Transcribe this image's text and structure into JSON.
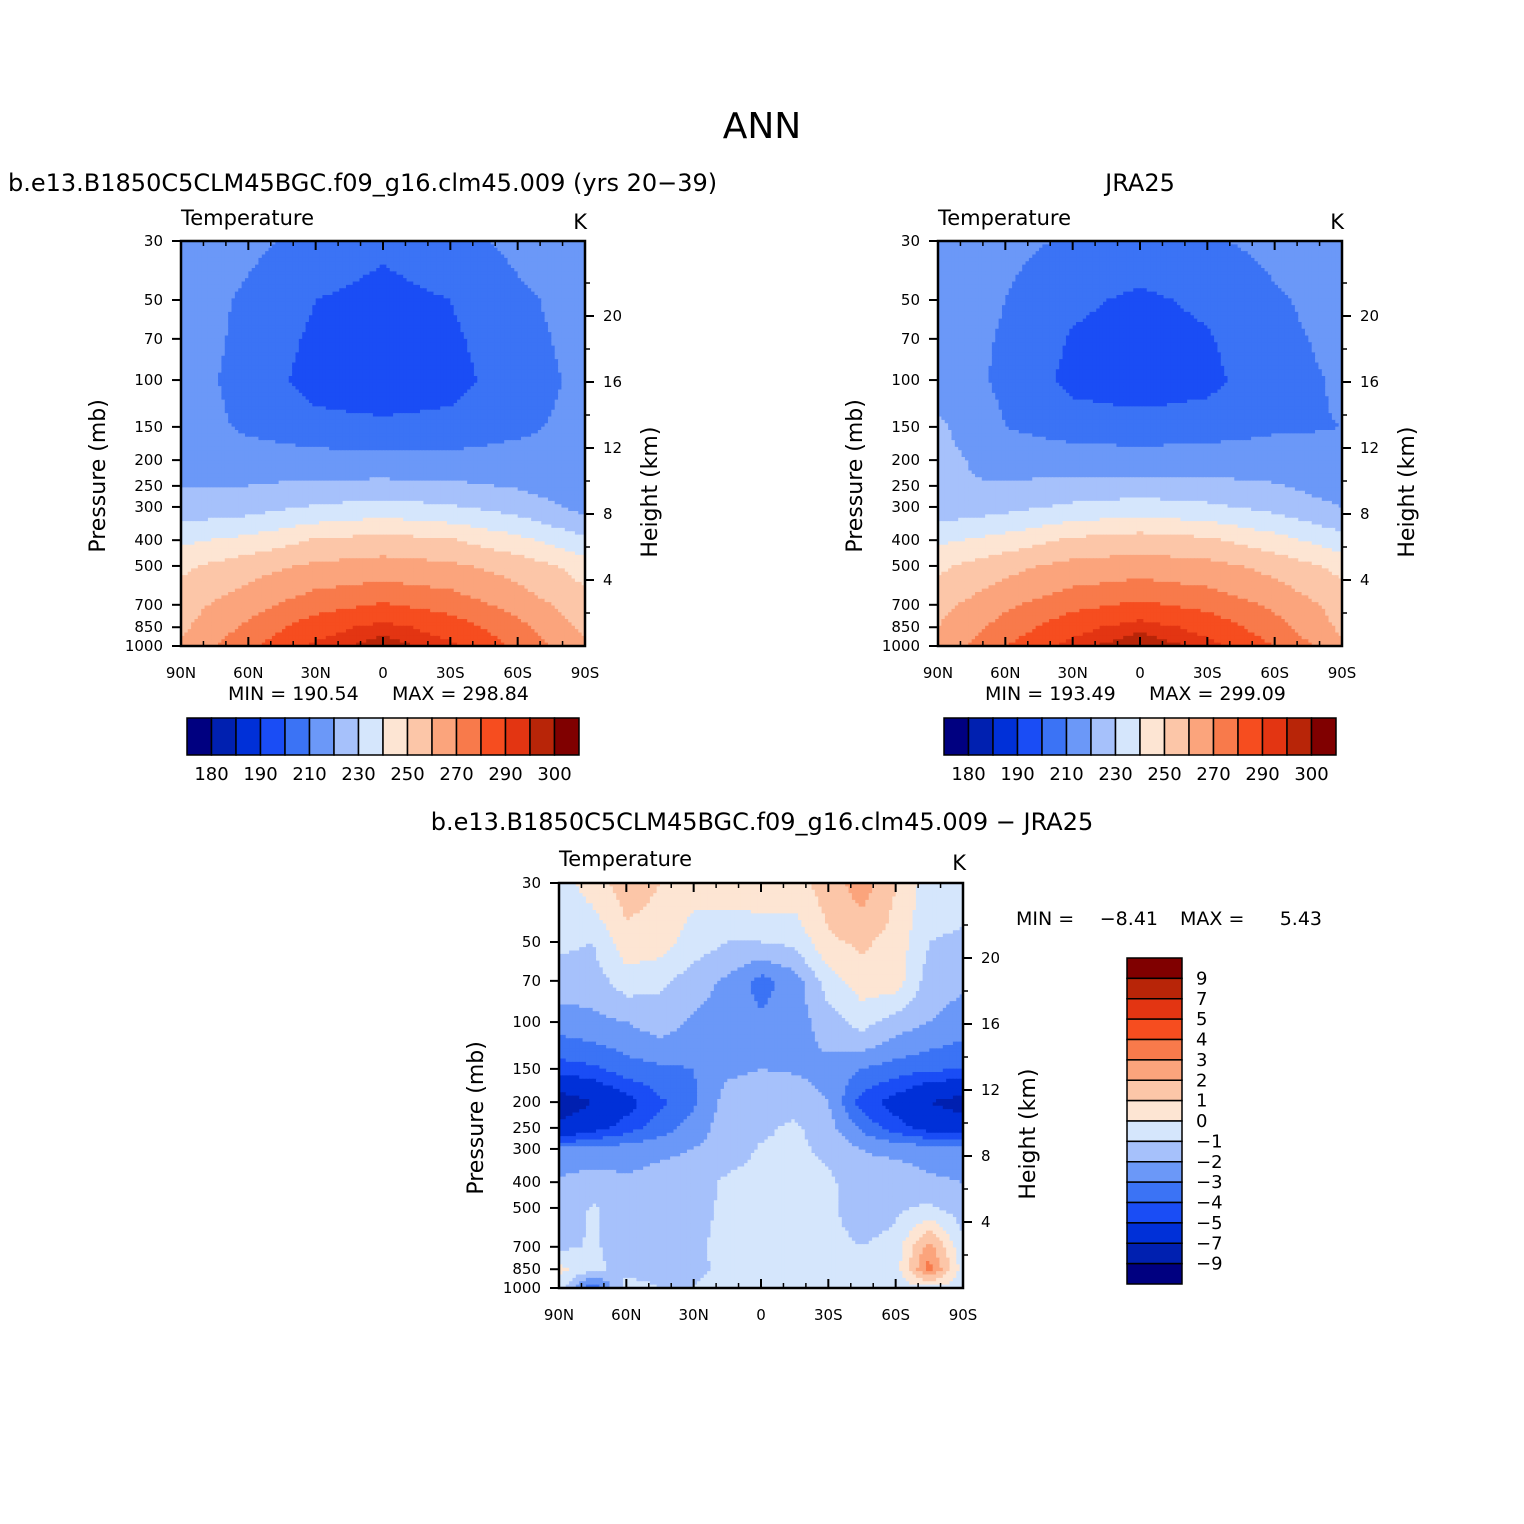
{
  "page_title": "ANN",
  "palette": {
    "abs": [
      "#000080",
      "#0020b0",
      "#0030d8",
      "#1a4df5",
      "#3b73f5",
      "#6b98f8",
      "#a6c1fb",
      "#d5e6fc",
      "#fde5d3",
      "#fcc6a8",
      "#fba47c",
      "#f87a4b",
      "#f64d1f",
      "#e33512",
      "#b82508",
      "#800000"
    ],
    "diff": [
      "#000080",
      "#0020b0",
      "#0030d8",
      "#1a4df5",
      "#3b73f5",
      "#6b98f8",
      "#a6c1fb",
      "#d5e6fc",
      "#fde5d3",
      "#fcc6a8",
      "#fba47c",
      "#f87a4b",
      "#f64d1f",
      "#e33512",
      "#b82508",
      "#800000"
    ]
  },
  "chart_data": [
    {
      "type": "heatmap",
      "title": "b.e13.B1850C5CLM45BGC.f09_g16.clm45.009 (yrs 20−39)",
      "left_string": "Temperature",
      "right_string": "K",
      "ylabel": "Pressure (mb)",
      "y2label": "Height (km)",
      "x_ticks": [
        "90N",
        "60N",
        "30N",
        "0",
        "30S",
        "60S",
        "90S"
      ],
      "y_ticks": [
        "30",
        "50",
        "70",
        "100",
        "150",
        "200",
        "250",
        "300",
        "400",
        "500",
        "700",
        "850",
        "1000"
      ],
      "y_tick_values": [
        30,
        50,
        70,
        100,
        150,
        200,
        250,
        300,
        400,
        500,
        700,
        850,
        1000
      ],
      "y2_ticks": [
        "20",
        "16",
        "12",
        "8",
        "4"
      ],
      "y2_tick_values": [
        20,
        16,
        12,
        8,
        4
      ],
      "min_label": "MIN = 190.54",
      "max_label": "MAX = 298.84",
      "min": 190.54,
      "max": 298.84,
      "colorbar_labels": [
        "180",
        "190",
        "210",
        "230",
        "250",
        "270",
        "290",
        "300"
      ],
      "levels": [
        180,
        185,
        190,
        200,
        210,
        220,
        230,
        240,
        250,
        260,
        270,
        280,
        290,
        295,
        300
      ],
      "latitudes": [
        90,
        60,
        30,
        0,
        -30,
        -60,
        -90
      ],
      "pressures": [
        30,
        50,
        70,
        100,
        150,
        200,
        250,
        300,
        400,
        500,
        700,
        850,
        1000
      ],
      "values": [
        [
          218,
          212,
          207,
          202,
          207,
          212,
          220
        ],
        [
          216,
          208,
          200,
          196,
          200,
          208,
          214
        ],
        [
          216,
          207,
          198,
          193,
          198,
          207,
          213
        ],
        [
          215,
          206,
          196,
          192,
          196,
          206,
          212
        ],
        [
          216,
          208,
          204,
          203,
          204,
          208,
          213
        ],
        [
          218,
          216,
          214,
          213,
          213,
          214,
          212
        ],
        [
          220,
          220,
          222,
          223,
          222,
          219,
          214
        ],
        [
          224,
          226,
          231,
          234,
          231,
          226,
          217
        ],
        [
          238,
          243,
          251,
          254,
          251,
          243,
          232
        ],
        [
          248,
          256,
          262,
          264,
          262,
          256,
          246
        ],
        [
          256,
          266,
          276,
          281,
          276,
          266,
          254
        ],
        [
          258,
          272,
          286,
          293,
          286,
          273,
          258
        ],
        [
          262,
          278,
          292,
          298,
          292,
          278,
          262
        ]
      ]
    },
    {
      "type": "heatmap",
      "title": "JRA25",
      "left_string": "Temperature",
      "right_string": "K",
      "ylabel": "Pressure (mb)",
      "y2label": "Height (km)",
      "x_ticks": [
        "90N",
        "60N",
        "30N",
        "0",
        "30S",
        "60S",
        "90S"
      ],
      "y_ticks": [
        "30",
        "50",
        "70",
        "100",
        "150",
        "200",
        "250",
        "300",
        "400",
        "500",
        "700",
        "850",
        "1000"
      ],
      "y_tick_values": [
        30,
        50,
        70,
        100,
        150,
        200,
        250,
        300,
        400,
        500,
        700,
        850,
        1000
      ],
      "y2_ticks": [
        "20",
        "16",
        "12",
        "8",
        "4"
      ],
      "y2_tick_values": [
        20,
        16,
        12,
        8,
        4
      ],
      "min_label": "MIN = 193.49",
      "max_label": "MAX = 299.09",
      "min": 193.49,
      "max": 299.09,
      "colorbar_labels": [
        "180",
        "190",
        "210",
        "230",
        "250",
        "270",
        "290",
        "300"
      ],
      "levels": [
        180,
        185,
        190,
        200,
        210,
        220,
        230,
        240,
        250,
        260,
        270,
        280,
        290,
        295,
        300
      ],
      "latitudes": [
        90,
        60,
        30,
        0,
        -30,
        -60,
        -90
      ],
      "pressures": [
        30,
        50,
        70,
        100,
        150,
        200,
        250,
        300,
        400,
        500,
        700,
        850,
        1000
      ],
      "values": [
        [
          216,
          212,
          209,
          206,
          209,
          212,
          216
        ],
        [
          215,
          210,
          202,
          198,
          202,
          209,
          213
        ],
        [
          215,
          209,
          199,
          195,
          199,
          208,
          212
        ],
        [
          216,
          208,
          197,
          194,
          197,
          207,
          211
        ],
        [
          222,
          210,
          206,
          205,
          206,
          209,
          210
        ],
        [
          223,
          216,
          215,
          214,
          215,
          214,
          212
        ],
        [
          220,
          221,
          223,
          224,
          223,
          221,
          215
        ],
        [
          224,
          227,
          232,
          235,
          232,
          227,
          220
        ],
        [
          238,
          244,
          252,
          255,
          252,
          244,
          234
        ],
        [
          248,
          257,
          263,
          265,
          263,
          257,
          247
        ],
        [
          257,
          268,
          277,
          282,
          277,
          268,
          256
        ],
        [
          260,
          274,
          287,
          294,
          287,
          274,
          258
        ],
        [
          263,
          280,
          293,
          299,
          293,
          280,
          262
        ]
      ]
    },
    {
      "type": "heatmap",
      "title": "b.e13.B1850C5CLM45BGC.f09_g16.clm45.009 − JRA25",
      "left_string": "Temperature",
      "right_string": "K",
      "ylabel": "Pressure (mb)",
      "y2label": "Height (km)",
      "x_ticks": [
        "90N",
        "60N",
        "30N",
        "0",
        "30S",
        "60S",
        "90S"
      ],
      "y_ticks": [
        "30",
        "50",
        "70",
        "100",
        "150",
        "200",
        "250",
        "300",
        "400",
        "500",
        "700",
        "850",
        "1000"
      ],
      "y_tick_values": [
        30,
        50,
        70,
        100,
        150,
        200,
        250,
        300,
        400,
        500,
        700,
        850,
        1000
      ],
      "y2_ticks": [
        "20",
        "16",
        "12",
        "8",
        "4"
      ],
      "y2_tick_values": [
        20,
        16,
        12,
        8,
        4
      ],
      "min_label": "MIN =",
      "min_value": "−8.41",
      "max_label": "MAX =",
      "max_value": "5.43",
      "min": -8.41,
      "max": 5.43,
      "colorbar_labels": [
        "9",
        "7",
        "5",
        "4",
        "3",
        "2",
        "1",
        "0",
        "−1",
        "−2",
        "−3",
        "−4",
        "−5",
        "−7",
        "−9"
      ],
      "levels": [
        -9,
        -7,
        -5,
        -4,
        -3,
        -2,
        -1,
        0,
        1,
        2,
        3,
        4,
        5,
        7,
        9
      ],
      "latitudes": [
        90,
        75,
        60,
        45,
        30,
        15,
        0,
        -15,
        -30,
        -45,
        -60,
        -75,
        -90
      ],
      "pressures": [
        30,
        50,
        70,
        100,
        150,
        200,
        250,
        300,
        400,
        500,
        700,
        850,
        1000
      ],
      "values": [
        [
          -0.5,
          0.5,
          1.5,
          1.0,
          0.3,
          0.6,
          0.8,
          0.6,
          1.5,
          2.5,
          1.0,
          -0.5,
          -0.5
        ],
        [
          -0.8,
          -1.0,
          0.6,
          0.5,
          -0.5,
          -1.0,
          -1.0,
          -0.8,
          0.8,
          1.2,
          0.6,
          -1.0,
          -1.2
        ],
        [
          -1.5,
          -1.5,
          -0.5,
          -0.8,
          -1.5,
          -2.2,
          -3.4,
          -2.5,
          -0.5,
          0.5,
          0.5,
          -1.5,
          -1.8
        ],
        [
          -2.5,
          -2.3,
          -2.0,
          -1.5,
          -2.2,
          -2.5,
          -2.8,
          -2.5,
          -1.5,
          -0.6,
          -1.5,
          -2.0,
          -2.5
        ],
        [
          -4.5,
          -4.2,
          -3.5,
          -3.2,
          -3.0,
          -2.2,
          -2.0,
          -2.1,
          -2.3,
          -3.0,
          -3.5,
          -3.8,
          -4.0
        ],
        [
          -8.2,
          -7.0,
          -5.5,
          -4.2,
          -3.2,
          -1.5,
          -1.5,
          -1.4,
          -2.0,
          -4.5,
          -5.5,
          -7.0,
          -7.8
        ],
        [
          -6.5,
          -5.5,
          -4.5,
          -3.5,
          -2.5,
          -1.5,
          -1.2,
          -0.8,
          -1.6,
          -3.2,
          -4.5,
          -5.5,
          -6.0
        ],
        [
          -2.8,
          -2.6,
          -2.5,
          -2.2,
          -2.0,
          -1.5,
          -0.9,
          -0.8,
          -1.2,
          -2.0,
          -2.3,
          -2.5,
          -2.6
        ],
        [
          -1.8,
          -1.5,
          -1.8,
          -1.6,
          -1.5,
          -0.8,
          -0.6,
          -0.6,
          -0.8,
          -1.6,
          -1.2,
          -1.8,
          -2.0
        ],
        [
          -1.6,
          -0.9,
          -1.5,
          -1.6,
          -1.3,
          -0.8,
          -0.8,
          -0.8,
          -0.8,
          -1.6,
          -1.2,
          -0.8,
          -1.5
        ],
        [
          -1.2,
          -0.9,
          -1.3,
          -1.5,
          -1.2,
          -0.7,
          -0.7,
          -0.6,
          -0.6,
          -1.0,
          -0.6,
          2.5,
          -0.8
        ],
        [
          0.3,
          -0.8,
          -1.3,
          -1.5,
          -1.2,
          -0.8,
          -0.6,
          -0.6,
          -0.5,
          -0.8,
          -0.5,
          3.5,
          -0.5
        ],
        [
          -0.5,
          -4.0,
          -0.5,
          -1.0,
          -1.0,
          -0.5,
          -0.5,
          -0.5,
          -0.5,
          -0.5,
          -0.5,
          -0.5,
          -0.5
        ]
      ]
    }
  ]
}
